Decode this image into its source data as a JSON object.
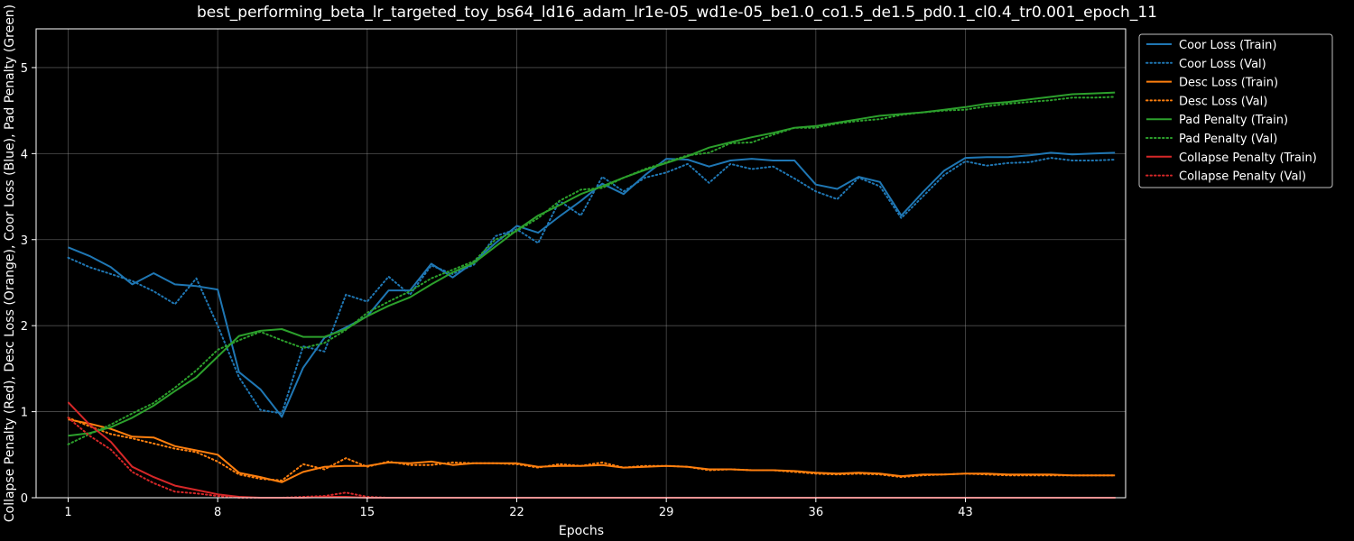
{
  "chart_data": {
    "type": "line",
    "title": "best_performing_beta_lr_targeted_toy_bs64_ld16_adam_lr1e-05_wd1e-05_be1.0_co1.5_de1.5_pd0.1_cl0.4_tr0.001_epoch_11",
    "xlabel": "Epochs",
    "ylabel": "Collapse Penalty (Red), Desc Loss (Orange), Coor Loss (Blue), Pad Penalty (Green)",
    "xlim": [
      -0.5,
      50.5
    ],
    "ylim": [
      0,
      5.45
    ],
    "xticks": [
      "1",
      "8",
      "15",
      "22",
      "29",
      "36",
      "43"
    ],
    "yticks": [
      "0",
      "1",
      "2",
      "3",
      "4",
      "5"
    ],
    "grid": true,
    "legend_position": "upper right outside",
    "x": [
      1,
      2,
      3,
      4,
      5,
      6,
      7,
      8,
      9,
      10,
      11,
      12,
      13,
      14,
      15,
      16,
      17,
      18,
      19,
      20,
      21,
      22,
      23,
      24,
      25,
      26,
      27,
      28,
      29,
      30,
      31,
      32,
      33,
      34,
      35,
      36,
      37,
      38,
      39,
      40,
      41,
      42,
      43,
      44,
      45,
      46,
      47,
      48,
      49,
      50
    ],
    "series": [
      {
        "name": "Coor Loss (Train)",
        "color": "#1f77b4",
        "style": "solid",
        "values": [
          2.91,
          2.81,
          2.68,
          2.48,
          2.61,
          2.48,
          2.46,
          2.42,
          1.46,
          1.26,
          0.94,
          1.51,
          1.86,
          1.98,
          2.11,
          2.41,
          2.41,
          2.72,
          2.56,
          2.74,
          2.96,
          3.16,
          3.08,
          3.27,
          3.45,
          3.65,
          3.53,
          3.75,
          3.94,
          3.93,
          3.85,
          3.92,
          3.94,
          3.92,
          3.92,
          3.64,
          3.59,
          3.73,
          3.67,
          3.28,
          3.55,
          3.8,
          3.95,
          3.96,
          3.96,
          3.98,
          4.01,
          3.99,
          4.0,
          4.01
        ]
      },
      {
        "name": "Coor Loss (Val)",
        "color": "#1f77b4",
        "style": "dotted",
        "values": [
          2.79,
          2.68,
          2.6,
          2.52,
          2.4,
          2.25,
          2.55,
          2.0,
          1.4,
          1.02,
          0.98,
          1.76,
          1.7,
          2.36,
          2.28,
          2.57,
          2.36,
          2.7,
          2.6,
          2.71,
          3.04,
          3.12,
          2.96,
          3.45,
          3.28,
          3.73,
          3.56,
          3.72,
          3.78,
          3.88,
          3.66,
          3.88,
          3.82,
          3.85,
          3.71,
          3.56,
          3.47,
          3.72,
          3.62,
          3.25,
          3.5,
          3.75,
          3.91,
          3.86,
          3.89,
          3.9,
          3.95,
          3.92,
          3.92,
          3.93
        ]
      },
      {
        "name": "Desc Loss (Train)",
        "color": "#ff7f0e",
        "style": "solid",
        "values": [
          0.91,
          0.86,
          0.8,
          0.71,
          0.7,
          0.6,
          0.55,
          0.5,
          0.29,
          0.24,
          0.18,
          0.3,
          0.36,
          0.37,
          0.37,
          0.41,
          0.4,
          0.42,
          0.38,
          0.4,
          0.4,
          0.4,
          0.36,
          0.37,
          0.37,
          0.38,
          0.35,
          0.36,
          0.37,
          0.36,
          0.33,
          0.33,
          0.32,
          0.32,
          0.31,
          0.29,
          0.28,
          0.29,
          0.28,
          0.25,
          0.27,
          0.27,
          0.28,
          0.28,
          0.27,
          0.27,
          0.27,
          0.26,
          0.26,
          0.26
        ]
      },
      {
        "name": "Desc Loss (Val)",
        "color": "#ff7f0e",
        "style": "dotted",
        "values": [
          0.93,
          0.83,
          0.74,
          0.69,
          0.63,
          0.57,
          0.53,
          0.42,
          0.27,
          0.22,
          0.2,
          0.39,
          0.33,
          0.46,
          0.36,
          0.42,
          0.38,
          0.38,
          0.41,
          0.4,
          0.4,
          0.39,
          0.35,
          0.39,
          0.37,
          0.41,
          0.35,
          0.37,
          0.37,
          0.36,
          0.32,
          0.33,
          0.32,
          0.32,
          0.3,
          0.28,
          0.27,
          0.28,
          0.27,
          0.24,
          0.26,
          0.27,
          0.28,
          0.27,
          0.26,
          0.26,
          0.26,
          0.26,
          0.26,
          0.26
        ]
      },
      {
        "name": "Pad Penalty (Train)",
        "color": "#2ca02c",
        "style": "solid",
        "values": [
          0.72,
          0.75,
          0.82,
          0.93,
          1.07,
          1.24,
          1.4,
          1.64,
          1.88,
          1.94,
          1.96,
          1.87,
          1.87,
          1.96,
          2.11,
          2.23,
          2.33,
          2.48,
          2.62,
          2.73,
          2.92,
          3.11,
          3.28,
          3.4,
          3.53,
          3.62,
          3.72,
          3.81,
          3.89,
          3.97,
          4.07,
          4.13,
          4.19,
          4.24,
          4.3,
          4.32,
          4.36,
          4.4,
          4.44,
          4.46,
          4.48,
          4.51,
          4.54,
          4.58,
          4.6,
          4.63,
          4.66,
          4.69,
          4.7,
          4.71
        ]
      },
      {
        "name": "Pad Penalty (Val)",
        "color": "#2ca02c",
        "style": "dotted",
        "values": [
          0.62,
          0.74,
          0.85,
          0.98,
          1.1,
          1.28,
          1.48,
          1.72,
          1.83,
          1.93,
          1.83,
          1.74,
          1.8,
          1.95,
          2.15,
          2.28,
          2.4,
          2.55,
          2.65,
          2.75,
          3.0,
          3.1,
          3.25,
          3.45,
          3.58,
          3.6,
          3.72,
          3.82,
          3.9,
          3.98,
          4.01,
          4.12,
          4.13,
          4.22,
          4.3,
          4.3,
          4.35,
          4.38,
          4.4,
          4.45,
          4.48,
          4.5,
          4.51,
          4.55,
          4.58,
          4.6,
          4.62,
          4.65,
          4.65,
          4.66
        ]
      },
      {
        "name": "Collapse Penalty (Train)",
        "color": "#d62728",
        "style": "solid",
        "values": [
          1.11,
          0.85,
          0.65,
          0.36,
          0.24,
          0.14,
          0.09,
          0.04,
          0.01,
          0.0,
          0.0,
          0.0,
          0.01,
          0.01,
          0.0,
          0.0,
          0.0,
          0.0,
          0.0,
          0.0,
          0.0,
          0.0,
          0.0,
          0.0,
          0.0,
          0.0,
          0.0,
          0.0,
          0.0,
          0.0,
          0.0,
          0.0,
          0.0,
          0.0,
          0.0,
          0.0,
          0.0,
          0.0,
          0.0,
          0.0,
          0.0,
          0.0,
          0.0,
          0.0,
          0.0,
          0.0,
          0.0,
          0.0,
          0.0,
          0.0
        ]
      },
      {
        "name": "Collapse Penalty (Val)",
        "color": "#d62728",
        "style": "dotted",
        "values": [
          0.93,
          0.72,
          0.56,
          0.3,
          0.17,
          0.07,
          0.05,
          0.02,
          0.0,
          0.0,
          0.0,
          0.01,
          0.02,
          0.06,
          0.01,
          0.0,
          0.0,
          0.0,
          0.0,
          0.0,
          0.0,
          0.0,
          0.0,
          0.0,
          0.0,
          0.0,
          0.0,
          0.0,
          0.0,
          0.0,
          0.0,
          0.0,
          0.0,
          0.0,
          0.0,
          0.0,
          0.0,
          0.0,
          0.0,
          0.0,
          0.0,
          0.0,
          0.0,
          0.0,
          0.0,
          0.0,
          0.0,
          0.0,
          0.0,
          0.0
        ]
      }
    ]
  }
}
